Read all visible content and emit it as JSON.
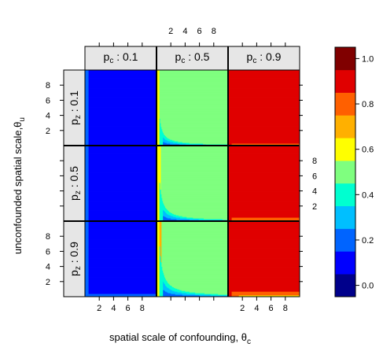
{
  "chart_data": {
    "type": "heatmap",
    "xlabel": "spatial scale of confounding,",
    "xlabel_symbol": "θ",
    "xlabel_sub": "c",
    "ylabel": "unconfounded spatial scale,",
    "ylabel_symbol": "θ",
    "ylabel_sub": "u",
    "x_ticks": [
      2,
      4,
      6,
      8
    ],
    "y_ticks": [
      2,
      4,
      6,
      8
    ],
    "x_range": [
      0,
      10
    ],
    "y_range": [
      0,
      10
    ],
    "columns": [
      {
        "base": "p",
        "sub": "c",
        "value": "0.1"
      },
      {
        "base": "p",
        "sub": "c",
        "value": "0.5"
      },
      {
        "base": "p",
        "sub": "c",
        "value": "0.9"
      }
    ],
    "rows": [
      {
        "base": "p",
        "sub": "z",
        "value": "0.1"
      },
      {
        "base": "p",
        "sub": "z",
        "value": "0.5"
      },
      {
        "base": "p",
        "sub": "z",
        "value": "0.9"
      }
    ],
    "colorbar": {
      "breaks": [
        -0.05,
        0.05,
        0.15,
        0.25,
        0.35,
        0.45,
        0.55,
        0.65,
        0.75,
        0.85,
        0.95,
        1.05
      ],
      "colors": [
        "#00008B",
        "#0000FF",
        "#0064FF",
        "#00BFFF",
        "#00FFD0",
        "#7FFF7F",
        "#FFFF00",
        "#FFB000",
        "#FF6000",
        "#E00000",
        "#800000"
      ],
      "tick_labels": [
        "0.0",
        "0.2",
        "0.4",
        "0.6",
        "0.8",
        "1.0"
      ],
      "tick_values": [
        0.0,
        0.2,
        0.4,
        0.6,
        0.8,
        1.0
      ]
    }
  }
}
